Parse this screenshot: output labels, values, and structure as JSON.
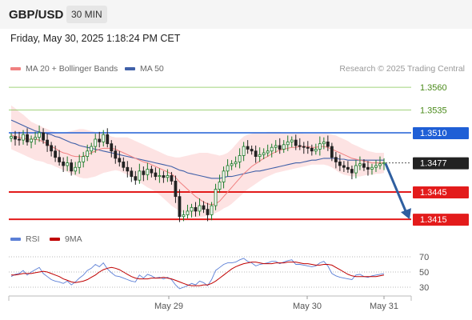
{
  "header": {
    "symbol": "GBP/USD",
    "timeframe": "30 MIN",
    "datetime": "Friday, May 30, 2025 1:18:24 PM CET"
  },
  "legend": {
    "ma20_label": "MA 20 + Bollinger Bands",
    "ma50_label": "MA 50",
    "credit": "Research © 2025 Trading Central",
    "rsi_label": "RSI",
    "rsi_ma_label": "9MA"
  },
  "colors": {
    "ma20": "#f08080",
    "ma50": "#4060a8",
    "bands": "#fcdcdc",
    "up": "#1a7a28",
    "down": "#222222",
    "support": "#e31b1b",
    "pivot": "#1f5fd6",
    "target_up": "#7ac143",
    "arrow": "#2f5fa0",
    "rsi": "#5b7fd6",
    "rsi_ma": "#c00000"
  },
  "chart_data": {
    "type": "line",
    "title": "",
    "x_ticks": [
      "May 29",
      "May 30",
      "May 31"
    ],
    "price_levels": [
      {
        "label": "1.3560",
        "value": 1.356,
        "kind": "target_up"
      },
      {
        "label": "1.3535",
        "value": 1.3535,
        "kind": "target_up"
      },
      {
        "label": "1.3510",
        "value": 1.351,
        "kind": "pivot"
      },
      {
        "label": "1.3477",
        "value": 1.3477,
        "kind": "last"
      },
      {
        "label": "1.3445",
        "value": 1.3445,
        "kind": "support"
      },
      {
        "label": "1.3415",
        "value": 1.3415,
        "kind": "support"
      }
    ],
    "close": [
      1.3506,
      1.3503,
      1.3502,
      1.3508,
      1.35,
      1.3503,
      1.3505,
      1.351,
      1.3502,
      1.3496,
      1.349,
      1.3483,
      1.3478,
      1.3474,
      1.3477,
      1.3468,
      1.3472,
      1.3478,
      1.3484,
      1.349,
      1.3495,
      1.3503,
      1.35,
      1.3508,
      1.3498,
      1.349,
      1.3482,
      1.3478,
      1.3472,
      1.3468,
      1.3462,
      1.3458,
      1.3468,
      1.3464,
      1.347,
      1.3466,
      1.3462,
      1.3463,
      1.3461,
      1.3463,
      1.3457,
      1.344,
      1.3418,
      1.342,
      1.3424,
      1.3428,
      1.3424,
      1.343,
      1.3426,
      1.342,
      1.343,
      1.3448,
      1.3456,
      1.3468,
      1.3474,
      1.3476,
      1.3478,
      1.3485,
      1.3495,
      1.3492,
      1.349,
      1.3484,
      1.3486,
      1.3488,
      1.349,
      1.3494,
      1.3496,
      1.3492,
      1.3497,
      1.35,
      1.3502,
      1.3496,
      1.3495,
      1.3494,
      1.3493,
      1.349,
      1.3492,
      1.3498,
      1.35,
      1.3495,
      1.3483,
      1.3478,
      1.3474,
      1.3472,
      1.347,
      1.3466,
      1.3474,
      1.3476,
      1.3472,
      1.347,
      1.3472,
      1.3474,
      1.3476,
      1.3477
    ],
    "ma20": [
      1.3508,
      1.3506,
      1.3505,
      1.3504,
      1.3503,
      1.3503,
      1.3503,
      1.3502,
      1.35,
      1.3498,
      1.3495,
      1.3493,
      1.349,
      1.3488,
      1.3487,
      1.3485,
      1.3484,
      1.3484,
      1.3484,
      1.3486,
      1.3488,
      1.349,
      1.3492,
      1.3493,
      1.3493,
      1.3493,
      1.3492,
      1.349,
      1.3488,
      1.3486,
      1.3484,
      1.3482,
      1.348,
      1.3478,
      1.3477,
      1.3475,
      1.3473,
      1.3471,
      1.3469,
      1.3467,
      1.3465,
      1.3461,
      1.3456,
      1.3452,
      1.3448,
      1.3444,
      1.344,
      1.3437,
      1.3434,
      1.3432,
      1.3431,
      1.3432,
      1.3435,
      1.344,
      1.3445,
      1.345,
      1.3455,
      1.346,
      1.3465,
      1.3469,
      1.3473,
      1.3476,
      1.3479,
      1.3482,
      1.3484,
      1.3487,
      1.3489,
      1.3491,
      1.3492,
      1.3493,
      1.3494,
      1.3494,
      1.3495,
      1.3495,
      1.3495,
      1.3494,
      1.3494,
      1.3495,
      1.3495,
      1.3494,
      1.3492,
      1.349,
      1.3488,
      1.3486,
      1.3484,
      1.3482,
      1.3481,
      1.348,
      1.3479,
      1.3478,
      1.3477,
      1.3477,
      1.3477,
      1.3477
    ],
    "ma50": [
      1.3524,
      1.3522,
      1.352,
      1.3518,
      1.3516,
      1.3514,
      1.3512,
      1.3511,
      1.351,
      1.3509,
      1.3508,
      1.3506,
      1.3505,
      1.3503,
      1.3501,
      1.3499,
      1.3498,
      1.3496,
      1.3495,
      1.3494,
      1.3493,
      1.3492,
      1.3491,
      1.349,
      1.3489,
      1.3488,
      1.3487,
      1.3486,
      1.3485,
      1.3484,
      1.3483,
      1.3482,
      1.3481,
      1.348,
      1.3479,
      1.3478,
      1.3477,
      1.3476,
      1.3475,
      1.3474,
      1.3473,
      1.3471,
      1.3469,
      1.3468,
      1.3466,
      1.3465,
      1.3464,
      1.3463,
      1.3462,
      1.3461,
      1.346,
      1.346,
      1.346,
      1.3461,
      1.3462,
      1.3462,
      1.3463,
      1.3464,
      1.3465,
      1.3466,
      1.3467,
      1.3468,
      1.3468,
      1.3469,
      1.347,
      1.3471,
      1.3472,
      1.3473,
      1.3474,
      1.3475,
      1.3476,
      1.3477,
      1.3477,
      1.3478,
      1.3479,
      1.348,
      1.348,
      1.3481,
      1.3482,
      1.3482,
      1.3482,
      1.3482,
      1.3481,
      1.3481,
      1.348,
      1.348,
      1.348,
      1.348,
      1.348,
      1.348,
      1.348,
      1.348,
      1.348,
      1.348
    ],
    "bb_upper": [
      1.354,
      1.3537,
      1.3533,
      1.353,
      1.3526,
      1.3522,
      1.352,
      1.3518,
      1.3516,
      1.3514,
      1.3512,
      1.3511,
      1.351,
      1.351,
      1.3511,
      1.3512,
      1.3513,
      1.3514,
      1.3514,
      1.3513,
      1.3512,
      1.3511,
      1.351,
      1.351,
      1.3508,
      1.3506,
      1.3505,
      1.3505,
      1.3505,
      1.3505,
      1.3503,
      1.3501,
      1.3499,
      1.3497,
      1.3495,
      1.3493,
      1.3491,
      1.3489,
      1.3487,
      1.3485,
      1.3484,
      1.3483,
      1.3483,
      1.3484,
      1.3485,
      1.3486,
      1.3487,
      1.3488,
      1.3488,
      1.3488,
      1.3487,
      1.3486,
      1.3485,
      1.3486,
      1.3488,
      1.3492,
      1.3497,
      1.3502,
      1.3506,
      1.3508,
      1.3509,
      1.351,
      1.351,
      1.351,
      1.3511,
      1.3511,
      1.3511,
      1.3511,
      1.351,
      1.351,
      1.351,
      1.351,
      1.351,
      1.3509,
      1.3509,
      1.3509,
      1.3509,
      1.3509,
      1.3509,
      1.3509,
      1.3508,
      1.3507,
      1.3505,
      1.3503,
      1.3501,
      1.3498,
      1.3496,
      1.3494,
      1.3492,
      1.349,
      1.3489,
      1.3488,
      1.3488,
      1.3488
    ],
    "bb_lower": [
      1.3492,
      1.349,
      1.3488,
      1.3486,
      1.3484,
      1.3482,
      1.348,
      1.3479,
      1.3478,
      1.3476,
      1.3475,
      1.3473,
      1.3471,
      1.3469,
      1.3467,
      1.3465,
      1.3463,
      1.3461,
      1.346,
      1.346,
      1.3461,
      1.3462,
      1.3464,
      1.3466,
      1.3467,
      1.3468,
      1.3469,
      1.3468,
      1.3466,
      1.3464,
      1.3462,
      1.3459,
      1.3456,
      1.3453,
      1.345,
      1.3448,
      1.3445,
      1.3442,
      1.3438,
      1.3434,
      1.343,
      1.3427,
      1.3424,
      1.3422,
      1.342,
      1.3418,
      1.3417,
      1.3417,
      1.3418,
      1.3419,
      1.342,
      1.3422,
      1.3424,
      1.3427,
      1.3429,
      1.3432,
      1.3436,
      1.344,
      1.3444,
      1.3448,
      1.3451,
      1.3454,
      1.3457,
      1.346,
      1.3462,
      1.3464,
      1.3466,
      1.3467,
      1.3468,
      1.3469,
      1.347,
      1.3471,
      1.3472,
      1.3473,
      1.3474,
      1.3475,
      1.3475,
      1.3475,
      1.3475,
      1.3474,
      1.3472,
      1.3469,
      1.3466,
      1.3464,
      1.3463,
      1.3462,
      1.3462,
      1.3462,
      1.3463,
      1.3464,
      1.3464,
      1.3465,
      1.3465,
      1.3466
    ],
    "forecast": {
      "from": 1.3477,
      "to": 1.3415
    },
    "rsi": {
      "ticks": [
        70,
        50,
        30
      ],
      "values": [
        44,
        47,
        48,
        52,
        46,
        50,
        53,
        56,
        48,
        44,
        40,
        38,
        37,
        35,
        38,
        33,
        37,
        42,
        46,
        52,
        55,
        60,
        57,
        62,
        54,
        49,
        45,
        44,
        42,
        40,
        38,
        37,
        46,
        42,
        47,
        45,
        42,
        43,
        41,
        43,
        40,
        33,
        28,
        30,
        32,
        35,
        33,
        38,
        36,
        32,
        40,
        52,
        56,
        60,
        62,
        62,
        63,
        66,
        68,
        64,
        62,
        58,
        60,
        61,
        62,
        64,
        64,
        61,
        63,
        65,
        66,
        60,
        60,
        59,
        58,
        57,
        58,
        62,
        64,
        58,
        48,
        45,
        43,
        42,
        41,
        40,
        46,
        47,
        44,
        43,
        45,
        46,
        47,
        48
      ],
      "ma9": [
        46,
        46,
        47,
        48,
        48,
        48,
        49,
        50,
        51,
        50,
        48,
        46,
        44,
        41,
        39,
        37,
        36,
        37,
        38,
        40,
        43,
        46,
        50,
        53,
        55,
        56,
        55,
        53,
        50,
        47,
        44,
        42,
        41,
        41,
        41,
        42,
        42,
        42,
        43,
        42,
        41,
        39,
        37,
        35,
        33,
        32,
        32,
        32,
        33,
        33,
        35,
        38,
        42,
        46,
        50,
        54,
        57,
        59,
        61,
        62,
        63,
        63,
        62,
        61,
        61,
        61,
        62,
        62,
        62,
        63,
        63,
        63,
        62,
        61,
        61,
        60,
        59,
        59,
        60,
        60,
        59,
        56,
        53,
        50,
        47,
        45,
        44,
        44,
        44,
        44,
        44,
        44,
        45,
        46
      ]
    }
  }
}
